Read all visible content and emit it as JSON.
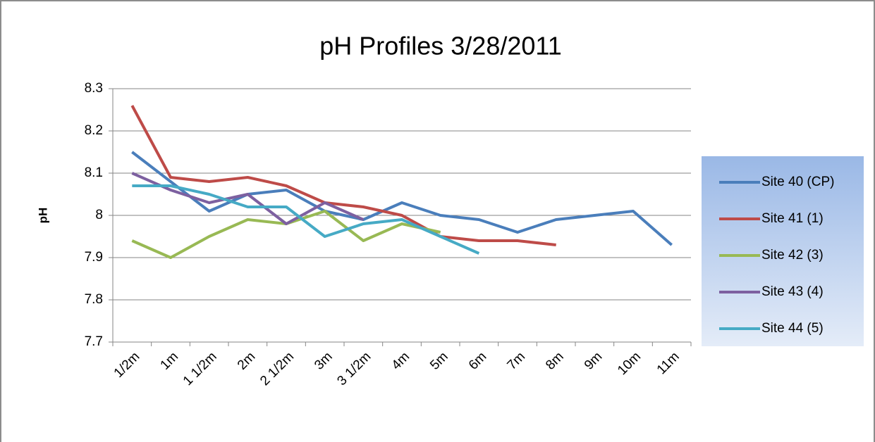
{
  "chart_data": {
    "type": "line",
    "title": "pH Profiles 3/28/2011",
    "y_label": "pH",
    "categories": [
      "1/2m",
      "1m",
      "1 1/2m",
      "2m",
      "2 1/2m",
      "3m",
      "3 1/2m",
      "4m",
      "5m",
      "6m",
      "7m",
      "8m",
      "9m",
      "10m",
      "11m"
    ],
    "series": [
      {
        "name": "Site 40 (CP)",
        "color": "#4a7ebb",
        "values": [
          8.15,
          8.08,
          8.01,
          8.05,
          8.06,
          8.01,
          7.99,
          8.03,
          8.0,
          7.99,
          7.96,
          7.99,
          8.0,
          8.01,
          7.93
        ]
      },
      {
        "name": "Site 41 (1)",
        "color": "#be4b48",
        "values": [
          8.26,
          8.09,
          8.08,
          8.09,
          8.07,
          8.03,
          8.02,
          8.0,
          7.95,
          7.94,
          7.94,
          7.93,
          null,
          null,
          null
        ]
      },
      {
        "name": "Site 42 (3)",
        "color": "#98b954",
        "values": [
          7.94,
          7.9,
          7.95,
          7.99,
          7.98,
          8.01,
          7.94,
          7.98,
          7.96,
          null,
          null,
          null,
          null,
          null,
          null
        ]
      },
      {
        "name": "Site 43 (4)",
        "color": "#7d60a0",
        "values": [
          8.1,
          8.06,
          8.03,
          8.05,
          7.98,
          8.03,
          7.99,
          null,
          null,
          null,
          null,
          null,
          null,
          null,
          null
        ]
      },
      {
        "name": "Site 44 (5)",
        "color": "#46aac5",
        "values": [
          8.07,
          8.07,
          8.05,
          8.02,
          8.02,
          7.95,
          7.98,
          7.99,
          7.95,
          7.91,
          null,
          null,
          null,
          null,
          null
        ]
      }
    ],
    "ylim": [
      7.7,
      8.3
    ],
    "yticks": [
      7.7,
      7.8,
      7.9,
      8,
      8.1,
      8.2,
      8.3
    ],
    "grid": true,
    "legend": "right"
  }
}
